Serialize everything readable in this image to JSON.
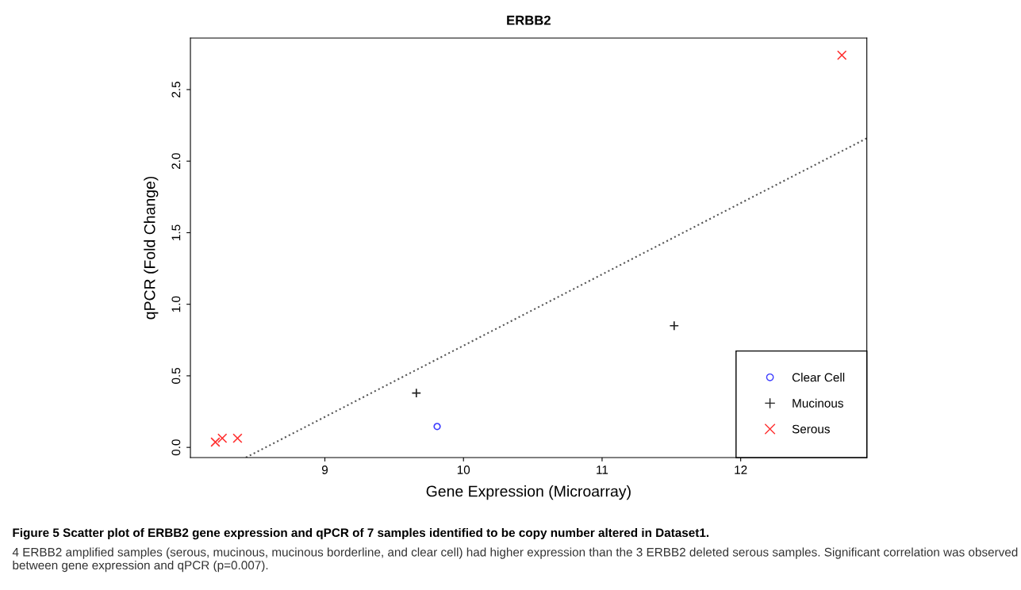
{
  "chart_data": {
    "type": "scatter",
    "title": "ERBB2",
    "xlabel": "Gene Expression (Microarray)",
    "ylabel": "qPCR (Fold Change)",
    "series": [
      {
        "name": "Clear Cell",
        "color": "#3b3bff",
        "marker": "circle",
        "x": [
          9.81
        ],
        "values": [
          0.146
        ]
      },
      {
        "name": "Mucinous",
        "color": "#222222",
        "marker": "cross",
        "x": [
          9.66,
          11.52
        ],
        "values": [
          0.38,
          0.85
        ]
      },
      {
        "name": "Serous",
        "color": "#ff3030",
        "marker": "x",
        "x": [
          8.21,
          8.26,
          8.37,
          12.73
        ],
        "values": [
          0.037,
          0.064,
          0.064,
          2.74
        ]
      },
      {
        "type": "line",
        "color": "#555555",
        "line_style": "dotted",
        "x": [
          8.43,
          12.91
        ],
        "values": [
          -0.071,
          2.16
        ]
      }
    ],
    "xlim": [
      8.03,
      12.91
    ],
    "ylim": [
      -0.071,
      2.86
    ],
    "xticks": [
      9,
      10,
      11,
      12
    ],
    "yticks": [
      {
        "value": 0,
        "label": "0.0"
      },
      0.5,
      {
        "value": 1,
        "label": "1.0"
      },
      1.5,
      {
        "value": 2,
        "label": "2.0"
      },
      2.5
    ],
    "grid": false,
    "legend": "bottom right",
    "annotations": [
      "Figure 5 Scatter plot of ERBB2 gene expression and qPCR of 7 samples identified to be copy number altered in Dataset1.",
      "4 ERBB2 amplified samples (serous, mucinous, mucinous borderline, and clear cell) had higher expression than the 3 ERBB2 deleted serous samples. Significant correlation was observed between gene expression and qPCR (p=0.007)."
    ]
  }
}
